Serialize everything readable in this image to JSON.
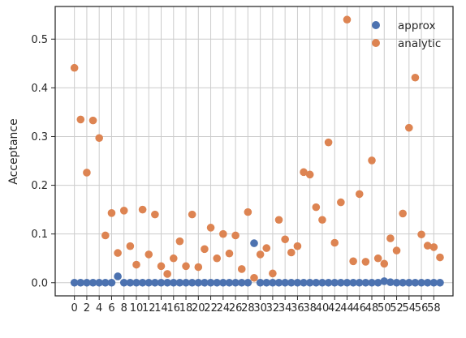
{
  "chart_data": {
    "type": "scatter",
    "ylabel": "Acceptance",
    "xlabel": "",
    "ylim": [
      -0.027,
      0.567
    ],
    "xlim": [
      -3.1,
      61.1
    ],
    "grid": true,
    "legend_position": "top-right",
    "x_ticks": [
      0,
      2,
      4,
      6,
      8,
      10,
      12,
      14,
      16,
      18,
      20,
      22,
      24,
      26,
      28,
      30,
      32,
      34,
      36,
      38,
      40,
      42,
      44,
      46,
      48,
      50,
      52,
      54,
      56,
      58
    ],
    "y_ticks": [
      "0.0",
      "0.1",
      "0.2",
      "0.3",
      "0.4",
      "0.5"
    ],
    "y_tick_values": [
      0.0,
      0.1,
      0.2,
      0.3,
      0.4,
      0.5
    ],
    "colors": {
      "approx": "#4c72b0",
      "analytic": "#dd8452"
    },
    "series": [
      {
        "name": "approx",
        "x": [
          0,
          1,
          2,
          3,
          4,
          5,
          6,
          7,
          8,
          9,
          10,
          11,
          12,
          13,
          14,
          15,
          16,
          17,
          18,
          19,
          20,
          21,
          22,
          23,
          24,
          25,
          26,
          27,
          28,
          29,
          30,
          31,
          32,
          33,
          34,
          35,
          36,
          37,
          38,
          39,
          40,
          41,
          42,
          43,
          44,
          45,
          46,
          47,
          48,
          49,
          50,
          51,
          52,
          53,
          54,
          55,
          56,
          57,
          58,
          59
        ],
        "y": [
          0,
          0,
          0,
          0,
          0,
          0,
          0,
          0.013,
          0,
          0,
          0,
          0,
          0,
          0,
          0,
          0,
          0,
          0,
          0,
          0,
          0,
          0,
          0,
          0,
          0,
          0,
          0,
          0,
          0,
          0.081,
          0,
          0,
          0,
          0,
          0,
          0,
          0,
          0,
          0,
          0,
          0,
          0,
          0,
          0,
          0,
          0,
          0,
          0,
          0,
          0,
          0.003,
          0.001,
          0,
          0,
          0,
          0,
          0,
          0,
          0,
          0
        ]
      },
      {
        "name": "analytic",
        "x": [
          0,
          1,
          2,
          3,
          4,
          5,
          6,
          7,
          8,
          9,
          10,
          11,
          12,
          13,
          14,
          15,
          16,
          17,
          18,
          19,
          20,
          21,
          22,
          23,
          24,
          25,
          26,
          27,
          28,
          29,
          30,
          31,
          32,
          33,
          34,
          35,
          36,
          37,
          38,
          39,
          40,
          41,
          42,
          43,
          44,
          45,
          46,
          47,
          48,
          49,
          50,
          51,
          52,
          53,
          54,
          55,
          56,
          57,
          58,
          59
        ],
        "y": [
          0.441,
          0.335,
          0.226,
          0.333,
          0.297,
          0.097,
          0.143,
          0.061,
          0.148,
          0.075,
          0.037,
          0.15,
          0.058,
          0.14,
          0.034,
          0.018,
          0.05,
          0.085,
          0.034,
          0.14,
          0.032,
          0.069,
          0.113,
          0.05,
          0.1,
          0.06,
          0.097,
          0.028,
          0.145,
          0.01,
          0.058,
          0.071,
          0.019,
          0.129,
          0.089,
          0.062,
          0.075,
          0.227,
          0.222,
          0.155,
          0.129,
          0.288,
          0.082,
          0.165,
          0.54,
          0.044,
          0.182,
          0.043,
          0.251,
          0.05,
          0.039,
          0.091,
          0.066,
          0.142,
          0.318,
          0.421,
          0.099,
          0.076,
          0.073,
          0.052
        ]
      }
    ]
  }
}
